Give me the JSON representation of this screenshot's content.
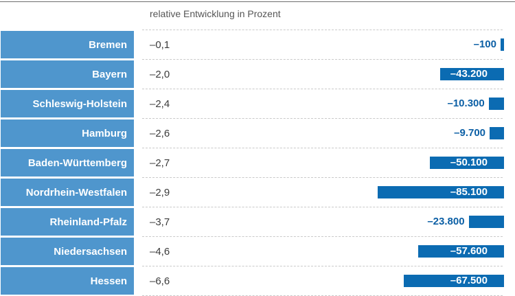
{
  "header": {
    "column_label": "relative Entwicklung in Prozent"
  },
  "chart_data": {
    "type": "bar",
    "title": "",
    "xlabel": "",
    "ylabel": "relative Entwicklung in Prozent",
    "categories": [
      "Bremen",
      "Bayern",
      "Schleswig-Holstein",
      "Hamburg",
      "Baden-Württemberg",
      "Nordrhein-Westfalen",
      "Rheinland-Pfalz",
      "Niedersachsen",
      "Hessen"
    ],
    "percent_labels": [
      "–0,1",
      "–2,0",
      "–2,4",
      "–2,6",
      "–2,7",
      "–2,9",
      "–3,7",
      "–4,6",
      "–6,6"
    ],
    "percent_values": [
      -0.1,
      -2.0,
      -2.4,
      -2.6,
      -2.7,
      -2.9,
      -3.7,
      -4.6,
      -6.6
    ],
    "values": [
      -100,
      -43200,
      -10300,
      -9700,
      -50100,
      -85100,
      -23800,
      -57600,
      -67500
    ],
    "value_labels": [
      "–100",
      "–43.200",
      "–10.300",
      "–9.700",
      "–50.100",
      "–85.100",
      "–23.800",
      "–57.600",
      "–67.500"
    ],
    "xlim": [
      -85100,
      0
    ],
    "colors": {
      "label_fill": "#4f96cd",
      "bar": "#0b6bb2",
      "value_text": "#0b5fa5"
    }
  }
}
